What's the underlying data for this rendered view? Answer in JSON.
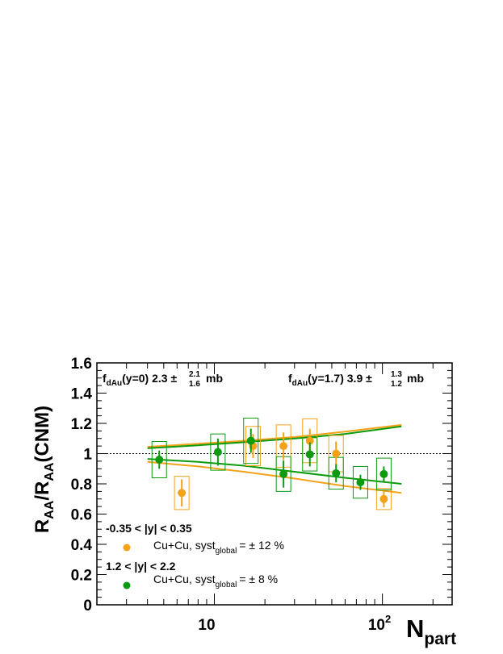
{
  "chart_data": {
    "type": "scatter",
    "ylabel": "R_{AA}/R_{AA}(CNM)",
    "ylabel_main": "R",
    "ylabel_sub1": "AA",
    "ylabel_mid": "/R",
    "ylabel_sub2": "AA",
    "ylabel_tail": "(CNM)",
    "xlabel": "N_{part}",
    "xlabel_main": "N",
    "xlabel_sub": "part",
    "xscale": "log",
    "xlim": [
      2,
      260
    ],
    "ylim": [
      0,
      1.6
    ],
    "yticks": [
      "0",
      "0.2",
      "0.4",
      "0.6",
      "0.8",
      "1",
      "1.2",
      "1.4",
      "1.6"
    ],
    "xtick_10": "10",
    "xtick_100_base": "10",
    "xtick_100_exp": "2",
    "reference_line": 1.0,
    "annotations": {
      "left_main": "f",
      "left_sub": "dAu",
      "left_mid": "(y=0)  2.3 ±",
      "left_up": "2.1",
      "left_down": "1.6",
      "left_unit": "mb",
      "right_main": "f",
      "right_sub": "dAu",
      "right_mid": "(y=1.7)  3.9 ±",
      "right_up": "1.3",
      "right_down": "1.2",
      "right_unit": "mb"
    },
    "legend": {
      "header1": "-0.35 < |y| < 0.35",
      "entry1_main": "Cu+Cu, syst",
      "entry1_sub": "global",
      "entry1_tail": "= ± 12 %",
      "header2": "1.2 < |y| < 2.2",
      "entry2_main": "Cu+Cu, syst",
      "entry2_sub": "global",
      "entry2_tail": "= ± 8 %"
    },
    "series": [
      {
        "color": "#f5a21b",
        "x": [
          6.4,
          17.0,
          25.8,
          37.0,
          53.0,
          102.0
        ],
        "y": [
          0.74,
          1.05,
          1.05,
          1.085,
          1.0,
          0.7
        ],
        "err": [
          0.09,
          0.08,
          0.09,
          0.08,
          0.08,
          0.055
        ],
        "sys": [
          0.11,
          0.13,
          0.14,
          0.145,
          0.12,
          0.07
        ],
        "band_x": [
          4.0,
          8,
          15,
          30,
          60,
          130
        ],
        "band_upper": [
          1.045,
          1.065,
          1.085,
          1.11,
          1.145,
          1.19
        ],
        "band_lower": [
          0.945,
          0.915,
          0.88,
          0.835,
          0.785,
          0.74
        ]
      },
      {
        "color": "#0d9b0d",
        "x": [
          4.7,
          10.5,
          16.5,
          25.8,
          37.0,
          53.0,
          74.0,
          102.0
        ],
        "y": [
          0.96,
          1.01,
          1.085,
          0.865,
          0.995,
          0.87,
          0.81,
          0.865
        ],
        "err": [
          0.06,
          0.09,
          0.08,
          0.09,
          0.08,
          0.06,
          0.05,
          0.05
        ],
        "sys": [
          0.12,
          0.12,
          0.15,
          0.115,
          0.11,
          0.105,
          0.105,
          0.105
        ],
        "band_x": [
          4.0,
          8,
          15,
          30,
          60,
          130
        ],
        "band_upper": [
          1.035,
          1.055,
          1.075,
          1.1,
          1.13,
          1.18
        ],
        "band_lower": [
          0.965,
          0.945,
          0.92,
          0.88,
          0.84,
          0.8
        ]
      }
    ]
  }
}
